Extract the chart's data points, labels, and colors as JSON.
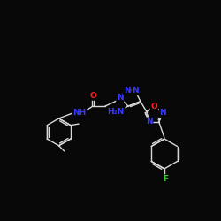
{
  "background_color": "#080808",
  "bond_color": "#d8d8d8",
  "atom_colors": {
    "N": "#3a3aff",
    "O": "#ff2020",
    "F": "#30cc30",
    "C": "#d8d8d8"
  },
  "lw": 1.0,
  "font_size_atom": 6.5
}
